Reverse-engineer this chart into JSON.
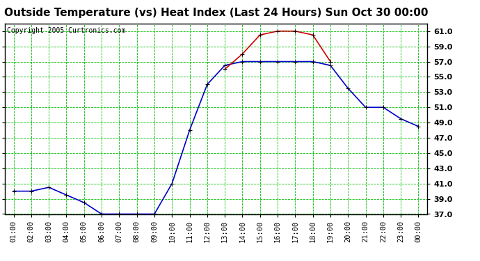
{
  "title": "Outside Temperature (vs) Heat Index (Last 24 Hours) Sun Oct 30 00:00",
  "copyright_text": "Copyright 2005 Curtronics.com",
  "x_labels": [
    "01:00",
    "02:00",
    "03:00",
    "04:00",
    "05:00",
    "06:00",
    "07:00",
    "08:00",
    "09:00",
    "10:00",
    "11:00",
    "12:00",
    "13:00",
    "14:00",
    "15:00",
    "16:00",
    "17:00",
    "18:00",
    "19:00",
    "20:00",
    "21:00",
    "22:00",
    "23:00",
    "00:00"
  ],
  "temp_x": [
    1,
    2,
    3,
    4,
    5,
    6,
    7,
    8,
    9,
    10,
    11,
    12,
    13,
    14,
    15,
    16,
    17,
    18,
    19,
    20,
    21,
    22,
    23,
    24
  ],
  "temp_y": [
    40.0,
    40.0,
    40.5,
    39.5,
    38.5,
    37.0,
    37.0,
    37.0,
    37.0,
    41.0,
    48.0,
    54.0,
    56.5,
    57.0,
    57.0,
    57.0,
    57.0,
    57.0,
    56.5,
    53.5,
    51.0,
    51.0,
    49.5,
    48.5
  ],
  "heat_x": [
    13,
    14,
    15,
    16,
    17,
    18,
    19
  ],
  "heat_y": [
    56.0,
    58.0,
    60.5,
    61.0,
    61.0,
    60.5,
    57.0
  ],
  "temp_color": "#0000cc",
  "heat_color": "#cc0000",
  "bg_color": "#ffffff",
  "plot_bg_color": "#ffffff",
  "grid_color": "#00bb00",
  "ylim": [
    37.0,
    62.0
  ],
  "yticks": [
    37.0,
    39.0,
    41.0,
    43.0,
    45.0,
    47.0,
    49.0,
    51.0,
    53.0,
    55.0,
    57.0,
    59.0,
    61.0
  ],
  "title_fontsize": 11,
  "copyright_fontsize": 7,
  "tick_fontsize": 7.5,
  "marker": "+"
}
